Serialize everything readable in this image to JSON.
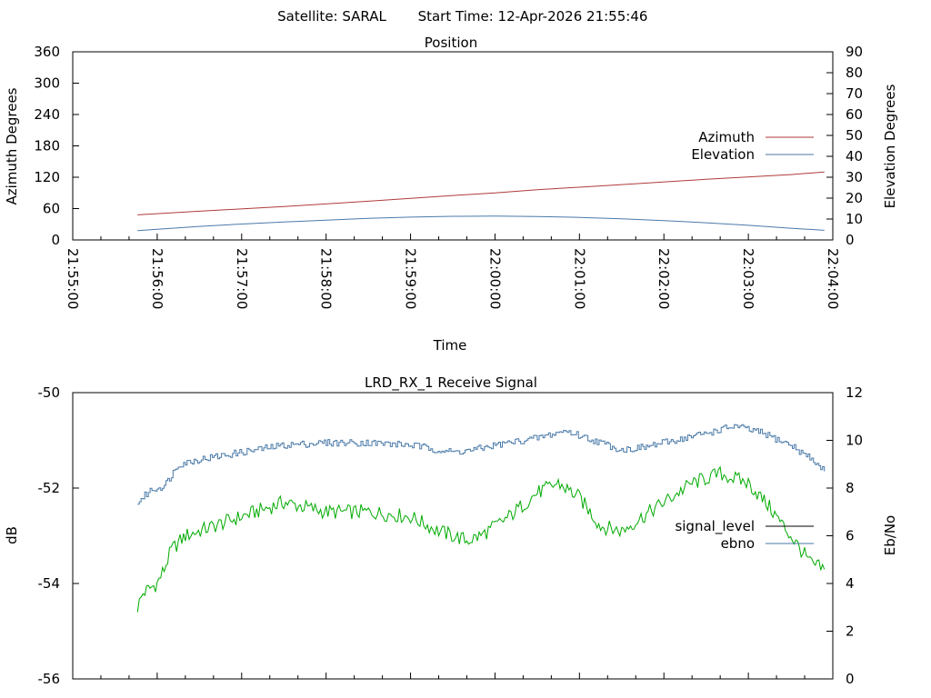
{
  "header": {
    "satellite": "Satellite: SARAL",
    "start_time": "Start Time: 12-Apr-2026 21:55:46"
  },
  "chart_data": [
    {
      "type": "line",
      "title": "Position",
      "xlabel": "Time",
      "ylabel": "Azimuth Degrees",
      "y2label": "Elevation Degrees",
      "xlim": [
        "21:55:00",
        "22:04:00"
      ],
      "x_ticks": [
        "21:55:00",
        "21:56:00",
        "21:57:00",
        "21:58:00",
        "21:59:00",
        "22:00:00",
        "22:01:00",
        "22:02:00",
        "22:03:00",
        "22:04:00"
      ],
      "ylim": [
        0,
        360
      ],
      "y_ticks": [
        "0",
        "60",
        "120",
        "180",
        "240",
        "300",
        "360"
      ],
      "y2lim": [
        0,
        90
      ],
      "y2_ticks": [
        "0",
        "10",
        "20",
        "30",
        "40",
        "50",
        "60",
        "70",
        "80",
        "90"
      ],
      "grid": false,
      "legend": "right",
      "series": [
        {
          "name": "Azimuth",
          "axis": "y",
          "color": "#b03a3a",
          "points": [
            [
              "21:55:46",
              48
            ],
            [
              "21:56:30",
              55
            ],
            [
              "21:57:30",
              64
            ],
            [
              "21:58:30",
              74
            ],
            [
              "21:59:30",
              85
            ],
            [
              "22:00:00",
              90
            ],
            [
              "22:00:30",
              96
            ],
            [
              "22:01:30",
              106
            ],
            [
              "22:02:30",
              116
            ],
            [
              "22:03:30",
              125
            ],
            [
              "22:03:54",
              130
            ]
          ]
        },
        {
          "name": "Elevation",
          "axis": "y2",
          "color": "#4a7aa8",
          "points": [
            [
              "21:55:46",
              4.5
            ],
            [
              "21:56:30",
              6.5
            ],
            [
              "21:57:00",
              7.6
            ],
            [
              "21:57:30",
              8.6
            ],
            [
              "21:58:00",
              9.5
            ],
            [
              "21:58:30",
              10.3
            ],
            [
              "21:59:00",
              10.9
            ],
            [
              "21:59:30",
              11.3
            ],
            [
              "22:00:00",
              11.4
            ],
            [
              "22:00:30",
              11.2
            ],
            [
              "22:01:00",
              10.8
            ],
            [
              "22:01:30",
              10.1
            ],
            [
              "22:02:00",
              9.2
            ],
            [
              "22:02:30",
              8.2
            ],
            [
              "22:03:00",
              7.0
            ],
            [
              "22:03:30",
              5.6
            ],
            [
              "22:03:54",
              4.6
            ]
          ]
        }
      ]
    },
    {
      "type": "line",
      "title": "LRD_RX_1 Receive Signal",
      "ylabel": "dB",
      "y2label": "Eb/No",
      "xlim": [
        "21:55:00",
        "22:04:00"
      ],
      "ylim": [
        -56,
        -50
      ],
      "y_ticks": [
        "-56",
        "-54",
        "-52",
        "-50"
      ],
      "y2lim": [
        0,
        12
      ],
      "y2_ticks": [
        "0",
        "2",
        "4",
        "6",
        "8",
        "10",
        "12"
      ],
      "grid": false,
      "legend": "right",
      "series": [
        {
          "name": "signal_level",
          "axis": "y",
          "color": "#00aa00",
          "legend_color": "#000000",
          "points": [
            [
              "21:55:46",
              -54.5
            ],
            [
              "21:55:50",
              -54.2
            ],
            [
              "21:56:00",
              -54.0
            ],
            [
              "21:56:05",
              -53.7
            ],
            [
              "21:56:10",
              -53.3
            ],
            [
              "21:56:20",
              -53.0
            ],
            [
              "21:56:40",
              -52.8
            ],
            [
              "21:57:00",
              -52.6
            ],
            [
              "21:57:20",
              -52.4
            ],
            [
              "21:57:30",
              -52.3
            ],
            [
              "21:58:00",
              -52.5
            ],
            [
              "21:58:30",
              -52.5
            ],
            [
              "21:59:00",
              -52.6
            ],
            [
              "21:59:20",
              -52.9
            ],
            [
              "21:59:40",
              -53.1
            ],
            [
              "21:59:50",
              -53.0
            ],
            [
              "22:00:10",
              -52.6
            ],
            [
              "22:00:30",
              -52.1
            ],
            [
              "22:00:45",
              -51.9
            ],
            [
              "22:01:00",
              -52.2
            ],
            [
              "22:01:15",
              -52.8
            ],
            [
              "22:01:30",
              -52.9
            ],
            [
              "22:01:45",
              -52.6
            ],
            [
              "22:02:00",
              -52.3
            ],
            [
              "22:02:20",
              -51.9
            ],
            [
              "22:02:40",
              -51.7
            ],
            [
              "22:03:00",
              -51.9
            ],
            [
              "22:03:15",
              -52.4
            ],
            [
              "22:03:30",
              -53.0
            ],
            [
              "22:03:45",
              -53.6
            ],
            [
              "22:03:54",
              -53.7
            ]
          ]
        },
        {
          "name": "ebno",
          "axis": "y2",
          "color": "#4a7aa8",
          "points": [
            [
              "21:55:46",
              7.4
            ],
            [
              "21:55:55",
              7.9
            ],
            [
              "21:56:05",
              8.1
            ],
            [
              "21:56:15",
              9.0
            ],
            [
              "21:56:30",
              9.2
            ],
            [
              "21:57:00",
              9.5
            ],
            [
              "21:57:30",
              9.8
            ],
            [
              "21:58:00",
              9.9
            ],
            [
              "21:58:30",
              9.9
            ],
            [
              "21:59:00",
              9.8
            ],
            [
              "21:59:30",
              9.5
            ],
            [
              "21:59:45",
              9.6
            ],
            [
              "22:00:00",
              9.8
            ],
            [
              "22:00:30",
              10.1
            ],
            [
              "22:00:50",
              10.4
            ],
            [
              "22:01:10",
              10.0
            ],
            [
              "22:01:30",
              9.6
            ],
            [
              "22:01:45",
              9.7
            ],
            [
              "22:02:00",
              9.9
            ],
            [
              "22:02:30",
              10.3
            ],
            [
              "22:02:50",
              10.6
            ],
            [
              "22:03:10",
              10.3
            ],
            [
              "22:03:30",
              9.8
            ],
            [
              "22:03:45",
              9.2
            ],
            [
              "22:03:54",
              8.7
            ]
          ]
        }
      ]
    }
  ]
}
